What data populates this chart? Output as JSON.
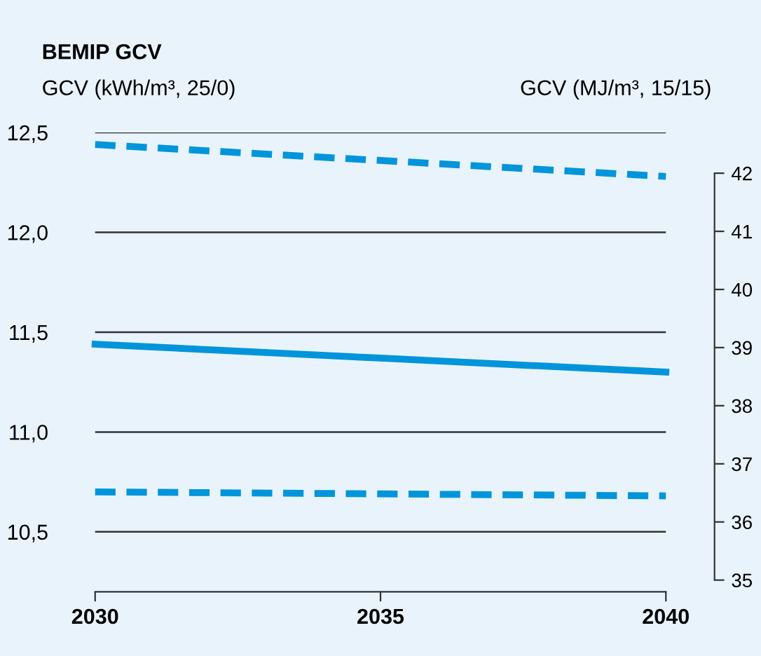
{
  "chart_data": {
    "type": "line",
    "title": "BEMIP GCV",
    "ylabel": "GCV (kWh/m³, 25/0)",
    "y2label": "GCV (MJ/m³, 15/15)",
    "x": [
      2030,
      2035,
      2040
    ],
    "xlim": [
      2030,
      2040
    ],
    "xticks": [
      2030,
      2035,
      2040
    ],
    "ylim": [
      10.2,
      12.5
    ],
    "yticks": [
      {
        "value": 10.5,
        "label": "10,5"
      },
      {
        "value": 11.0,
        "label": "11,0"
      },
      {
        "value": 11.5,
        "label": "11,5"
      },
      {
        "value": 12.0,
        "label": "12,0"
      },
      {
        "value": 12.5,
        "label": "12,5"
      }
    ],
    "y2lim": [
      34.8,
      42.7
    ],
    "y2ticks": [
      35,
      36,
      37,
      38,
      39,
      40,
      41,
      42
    ],
    "grid": "y",
    "series": [
      {
        "color": "#0095db",
        "line_style": "dashed",
        "values": [
          12.44,
          12.36,
          12.28
        ]
      },
      {
        "color": "#0095db",
        "line_style": "solid",
        "values": [
          11.44,
          11.37,
          11.3
        ]
      },
      {
        "color": "#0095db",
        "line_style": "dashed",
        "values": [
          10.7,
          10.69,
          10.68
        ]
      }
    ]
  }
}
